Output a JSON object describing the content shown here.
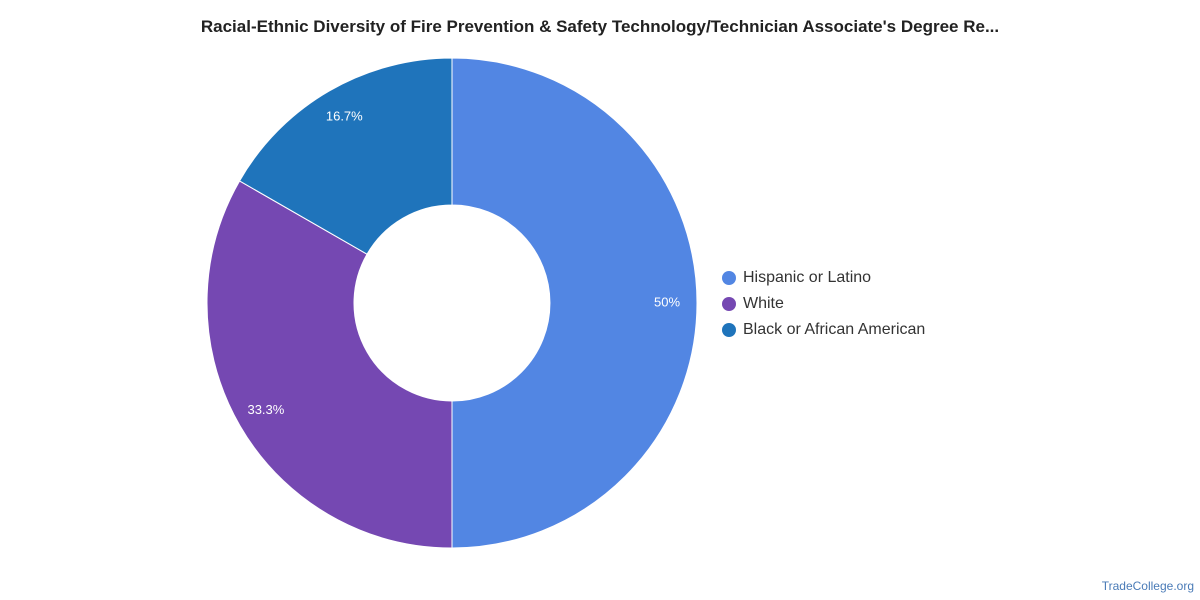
{
  "chart_data": {
    "type": "pie",
    "variant": "donut",
    "title": "Racial-Ethnic Diversity of Fire Prevention & Safety Technology/Technician Associate's Degree Re...",
    "categories": [
      "Hispanic or Latino",
      "White",
      "Black or African American"
    ],
    "values": [
      50,
      33.3,
      16.7
    ],
    "value_labels": [
      "50%",
      "33.3%",
      "16.7%"
    ],
    "colors": [
      "#5286e3",
      "#7548b2",
      "#1f74bb"
    ],
    "legend_position": "right"
  },
  "watermark": "TradeCollege.org"
}
